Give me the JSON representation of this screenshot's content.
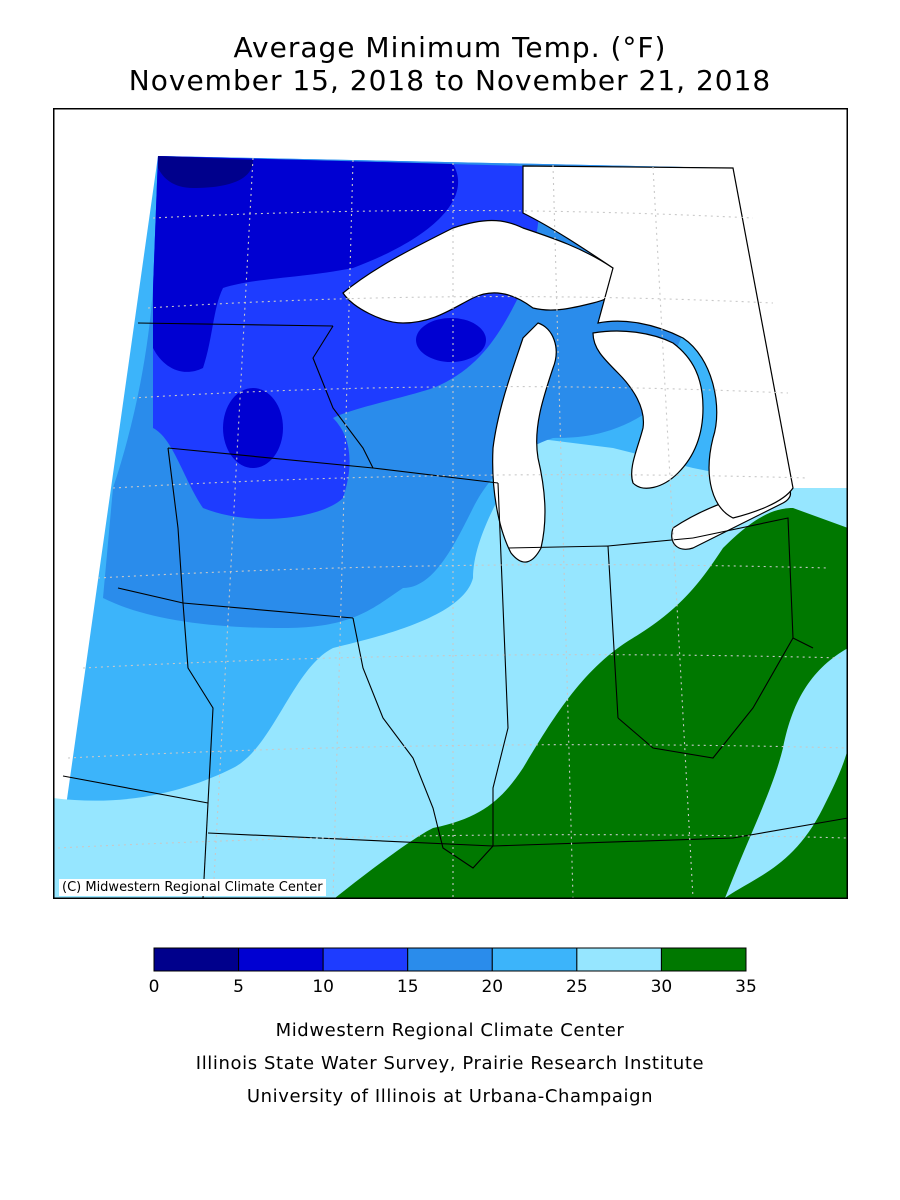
{
  "header": {
    "title": "Average Minimum Temp. (°F)",
    "subtitle": "November 15, 2018 to November 21, 2018"
  },
  "map": {
    "credit": "(C) Midwestern Regional Climate Center",
    "water_color": "#ffffff",
    "border_color": "#000000",
    "grid_color": "#c8c8c8"
  },
  "legend": {
    "bins": [
      {
        "min": 0,
        "max": 5,
        "color": "#00008c"
      },
      {
        "min": 5,
        "max": 10,
        "color": "#0000d2"
      },
      {
        "min": 10,
        "max": 15,
        "color": "#1e3cff"
      },
      {
        "min": 15,
        "max": 20,
        "color": "#2a8ceb"
      },
      {
        "min": 20,
        "max": 25,
        "color": "#3cb4fa"
      },
      {
        "min": 25,
        "max": 30,
        "color": "#96e6ff"
      },
      {
        "min": 30,
        "max": 35,
        "color": "#007800"
      }
    ],
    "tick_labels": [
      "0",
      "5",
      "10",
      "15",
      "20",
      "25",
      "30",
      "35"
    ]
  },
  "footer": {
    "line1": "Midwestern Regional Climate Center",
    "line2": "Illinois State Water Survey, Prairie Research Institute",
    "line3": "University of Illinois at Urbana-Champaign"
  }
}
